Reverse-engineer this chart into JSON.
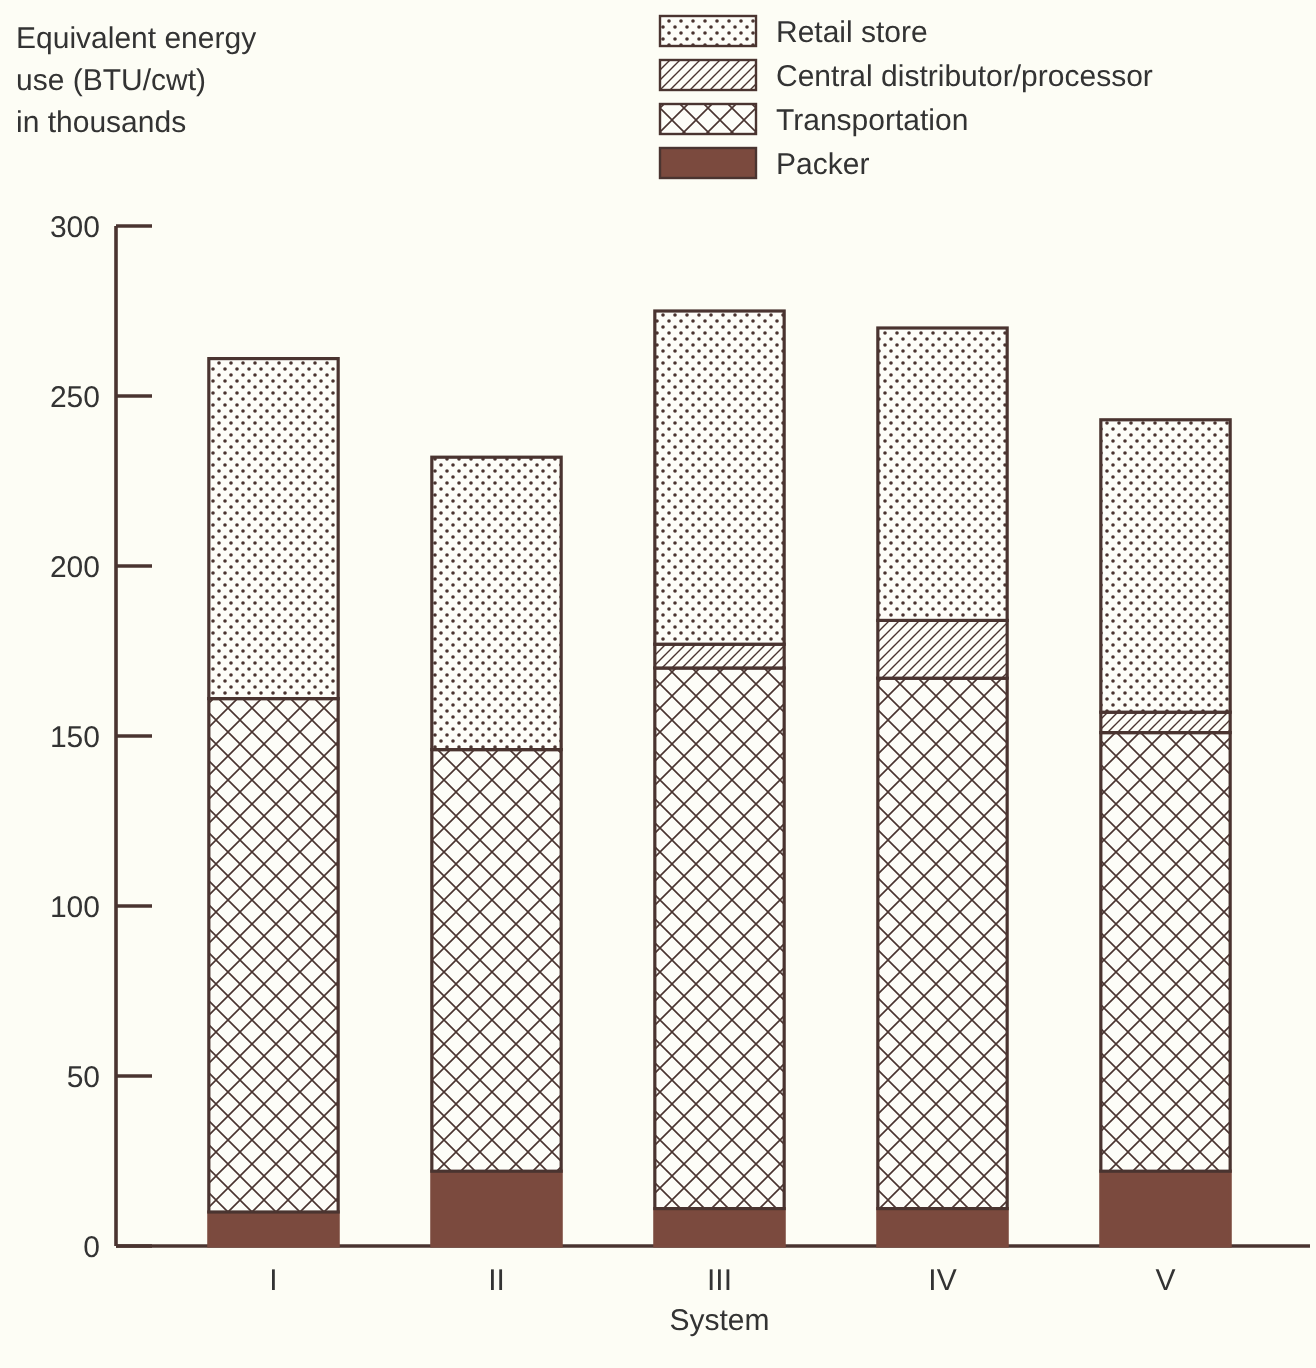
{
  "chart_data": {
    "type": "bar",
    "stacked": true,
    "ylabel": "Equivalent energy\nuse (BTU/cwt)\nin thousands",
    "xlabel": "System",
    "categories": [
      "I",
      "II",
      "III",
      "IV",
      "V"
    ],
    "series": [
      {
        "name": "Packer",
        "color": "#7b4a3e",
        "values": [
          10,
          22,
          11,
          11,
          22
        ]
      },
      {
        "name": "Transportation",
        "color": "#4a3430",
        "values": [
          151,
          124,
          159,
          156,
          129
        ]
      },
      {
        "name": "Central distributor/processor",
        "color": "#4a3430",
        "values": [
          null,
          null,
          7,
          17,
          6
        ]
      },
      {
        "name": "Retail store",
        "color": "#4a3430",
        "values": [
          100,
          86,
          98,
          86,
          86
        ]
      }
    ],
    "ylim": [
      0,
      300
    ],
    "yticks": [
      0,
      50,
      100,
      150,
      200,
      250,
      300
    ],
    "legend": "top right"
  }
}
